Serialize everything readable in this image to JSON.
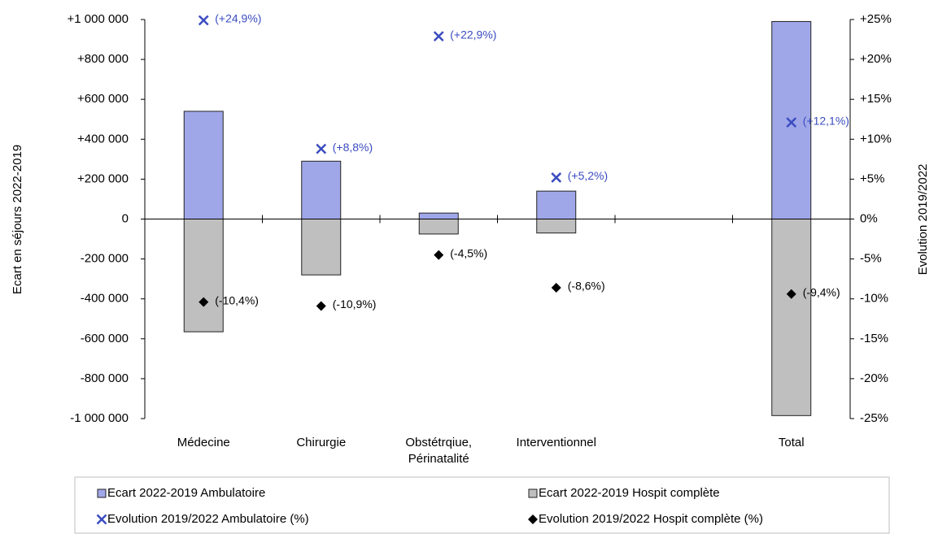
{
  "chart_data": {
    "type": "bar",
    "categories": [
      "Médecine",
      "Chirurgie",
      "Obstétrqiue,\nPérinatalité",
      "Interventionnel",
      null,
      "Total"
    ],
    "y_label": "Ecart en séjours 2022-2019",
    "y2_label": "Evolution 2019/2022",
    "ylim": [
      -1000000,
      1000000
    ],
    "yticks": [
      {
        "value": -1000000,
        "label": "-1 000 000"
      },
      {
        "value": -800000,
        "label": "-800 000"
      },
      {
        "value": -600000,
        "label": "-600 000"
      },
      {
        "value": -400000,
        "label": "-400 000"
      },
      {
        "value": -200000,
        "label": "-200 000"
      },
      0,
      {
        "value": 200000,
        "label": "+200 000"
      },
      {
        "value": 400000,
        "label": "+400 000"
      },
      {
        "value": 600000,
        "label": "+600 000"
      },
      {
        "value": 800000,
        "label": "+800 000"
      },
      {
        "value": 1000000,
        "label": "+1 000 000"
      }
    ],
    "y2lim": [
      -25,
      25
    ],
    "y2ticks": [
      {
        "value": -25,
        "label": "-25%"
      },
      {
        "value": -20,
        "label": "-20%"
      },
      {
        "value": -15,
        "label": "-15%"
      },
      {
        "value": -10,
        "label": "-10%"
      },
      {
        "value": -5,
        "label": "-5%"
      },
      {
        "value": 0,
        "label": "0%"
      },
      {
        "value": 5,
        "label": "+5%"
      },
      {
        "value": 10,
        "label": "+10%"
      },
      {
        "value": 15,
        "label": "+15%"
      },
      {
        "value": 20,
        "label": "+20%"
      },
      {
        "value": 25,
        "label": "+25%"
      }
    ],
    "legend": "bottom",
    "series": [
      {
        "name": "Ecart 2022-2019 Ambulatoire",
        "type": "bar",
        "color": "#a0a7e8",
        "values": [
          540000,
          290000,
          30000,
          140000,
          null,
          990000
        ]
      },
      {
        "name": "Ecart 2022-2019 Hospit complète",
        "type": "bar",
        "color": "#bfbfbf",
        "values": [
          -565000,
          -280000,
          -75000,
          -70000,
          null,
          -985000
        ]
      },
      {
        "name": "Evolution 2019/2022 Ambulatoire (%)",
        "type": "scatter",
        "marker": "x",
        "axis": "y2",
        "color": "#3b4cc0",
        "values": [
          24.9,
          8.8,
          22.9,
          5.2,
          null,
          12.1
        ],
        "value_labels": [
          "(+24,9%)",
          "(+8,8%)",
          "(+22,9%)",
          "(+5,2%)",
          null,
          "(+12,1%)"
        ]
      },
      {
        "name": "Evolution 2019/2022 Hospit complète (%)",
        "type": "scatter",
        "marker": "diamond",
        "axis": "y2",
        "color": "#000000",
        "values": [
          -10.4,
          -10.9,
          -4.5,
          -8.6,
          null,
          -9.4
        ],
        "value_labels": [
          "(-10,4%)",
          "(-10,9%)",
          "(-4,5%)",
          "(-8,6%)",
          null,
          "(-9,4%)"
        ]
      }
    ]
  }
}
